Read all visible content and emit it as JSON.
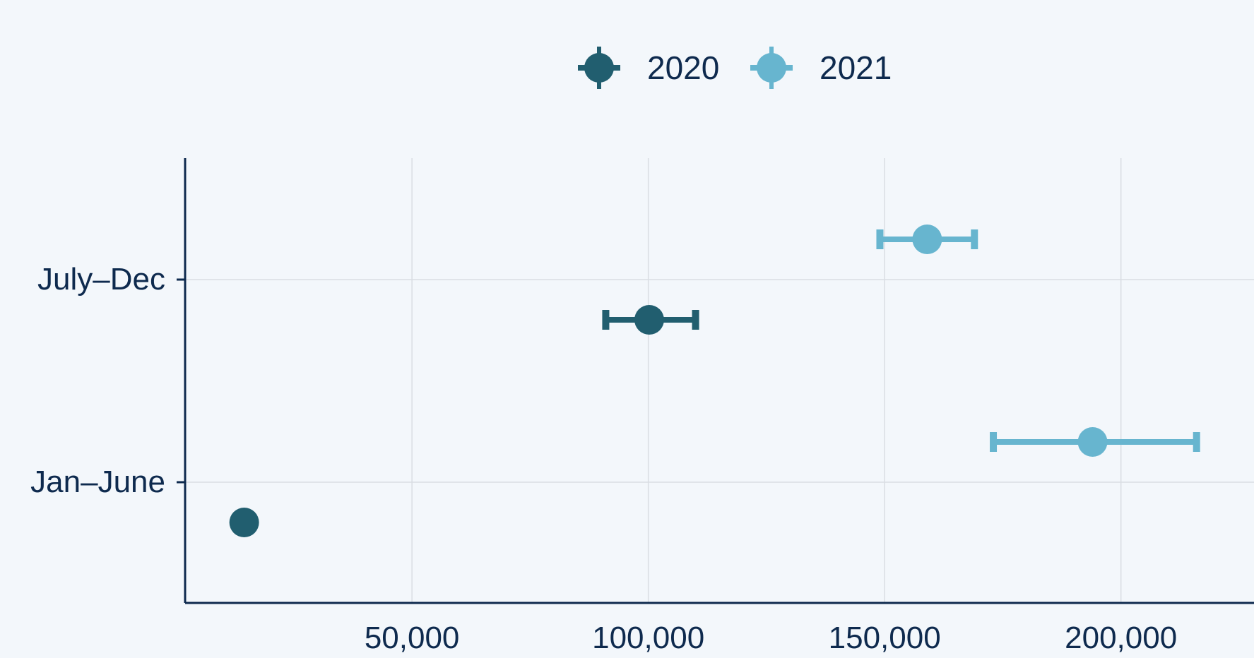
{
  "chart_data": {
    "type": "scatter",
    "title": "",
    "xlabel": "",
    "ylabel": "",
    "categories": [
      "Jan–June",
      "July–Dec"
    ],
    "xlim": [
      2000,
      228000
    ],
    "x_ticks": [
      50000,
      100000,
      150000,
      200000
    ],
    "x_tick_labels": [
      "50,000",
      "100,000",
      "150,000",
      "200,000"
    ],
    "grid": true,
    "legend_position": "top-center",
    "series": [
      {
        "name": "2020",
        "color": "#215e6f",
        "points": [
          {
            "category": "Jan–June",
            "value": 14500,
            "lower": 13500,
            "upper": 15500
          },
          {
            "category": "July–Dec",
            "value": 100200,
            "lower": 91000,
            "upper": 110000
          }
        ]
      },
      {
        "name": "2021",
        "color": "#67b5cf",
        "points": [
          {
            "category": "Jan–June",
            "value": 194000,
            "lower": 173000,
            "upper": 216000
          },
          {
            "category": "July–Dec",
            "value": 159000,
            "lower": 149000,
            "upper": 169000
          }
        ]
      }
    ]
  },
  "colors": {
    "background": "#f3f7fb",
    "axis": "#0e2a4e",
    "grid": "#d9dde3",
    "text": "#0e2a4e"
  }
}
